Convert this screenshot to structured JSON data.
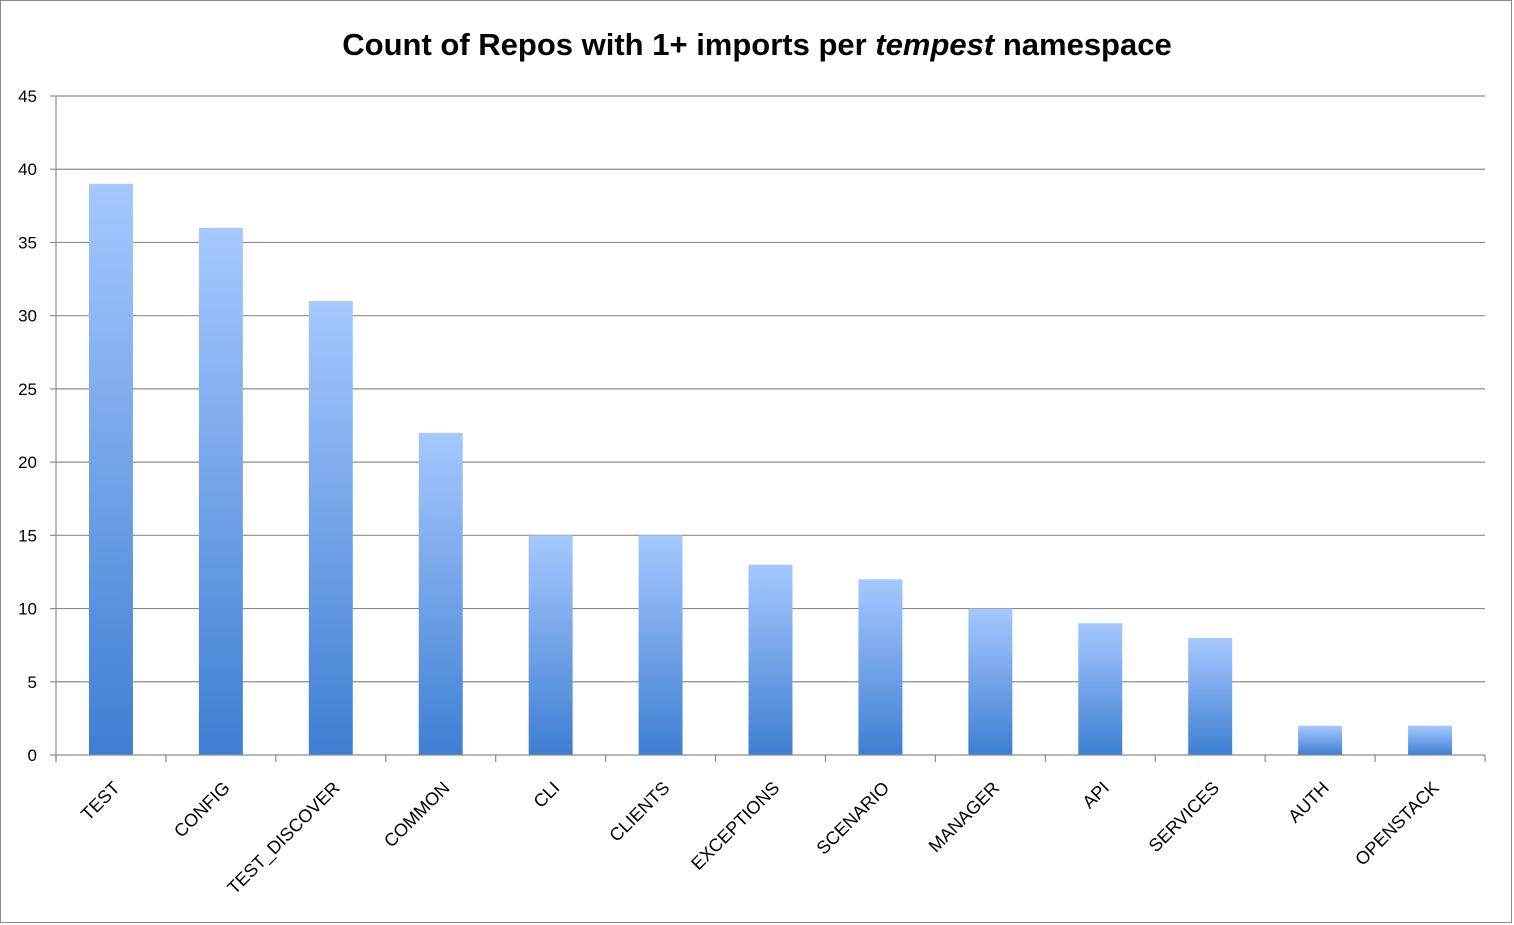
{
  "chart_data": {
    "type": "bar",
    "title_parts": [
      "Count of Repos with 1+ imports per ",
      "tempest",
      " namespace"
    ],
    "xlabel": "",
    "ylabel": "",
    "categories": [
      "TEST",
      "CONFIG",
      "TEST_DISCOVER",
      "COMMON",
      "CLI",
      "CLIENTS",
      "EXCEPTIONS",
      "SCENARIO",
      "MANAGER",
      "API",
      "SERVICES",
      "AUTH",
      "OPENSTACK"
    ],
    "values": [
      39,
      36,
      31,
      22,
      15,
      15,
      13,
      12,
      10,
      9,
      8,
      2,
      2
    ],
    "ylim": [
      0,
      45
    ],
    "yticks": [
      0,
      5,
      10,
      15,
      20,
      25,
      30,
      35,
      40,
      45
    ],
    "grid": true,
    "legend": "none",
    "colors": {
      "bar_top": "#a6c8ff",
      "bar_bottom": "#3e7fd2",
      "grid": "#8c8c8c"
    }
  }
}
